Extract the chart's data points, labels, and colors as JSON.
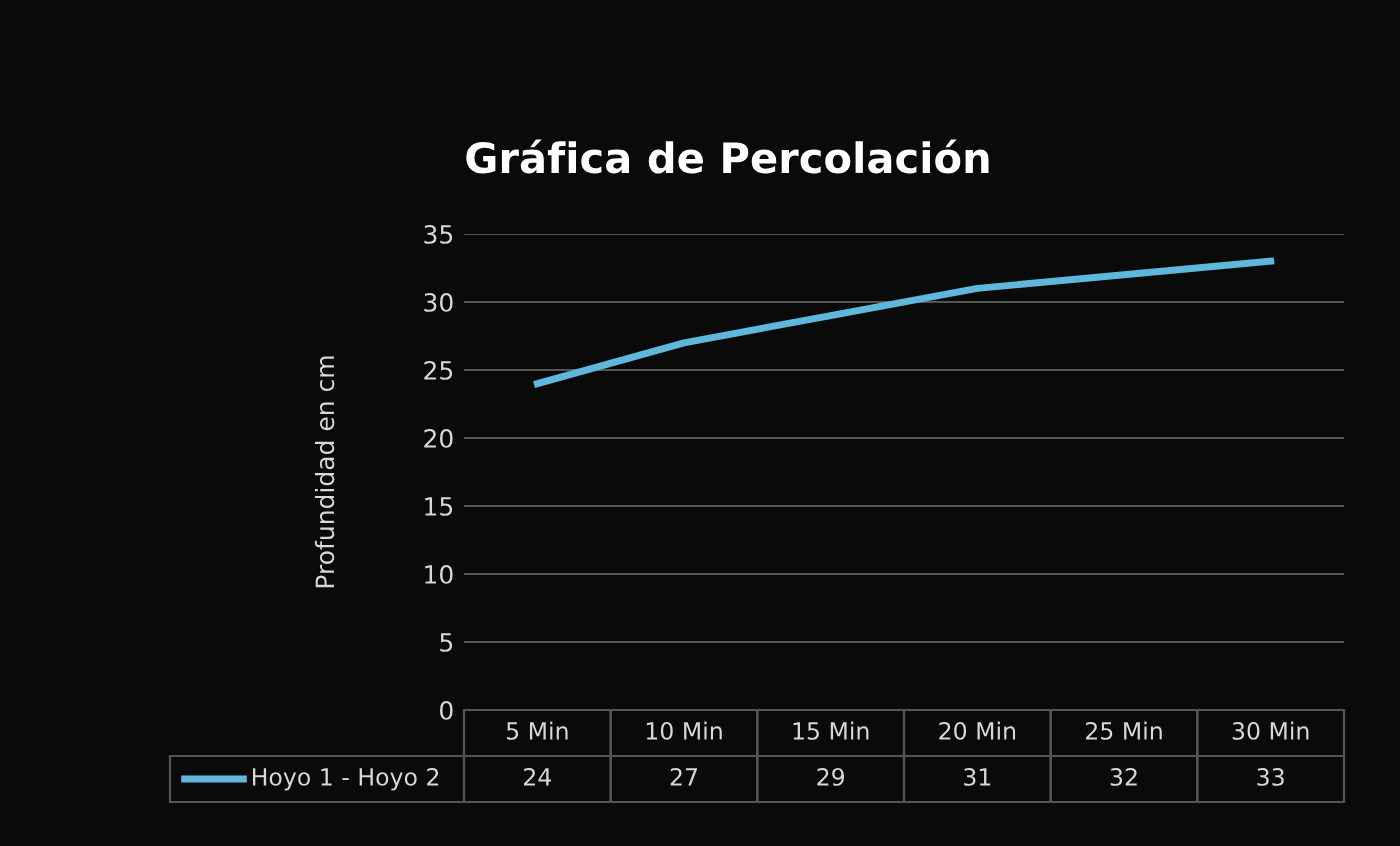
{
  "chart_data": {
    "type": "line",
    "title": "Gráfica de Percolación",
    "ylabel": "Profundidad en cm",
    "categories": [
      "5 Min",
      "10 Min",
      "15 Min",
      "20 Min",
      "25 Min",
      "30 Min"
    ],
    "series": [
      {
        "name": "Hoyo 1 - Hoyo 2",
        "color": "#5fb8dc",
        "values": [
          24,
          27,
          29,
          31,
          32,
          33
        ]
      }
    ],
    "ylim": [
      0,
      35
    ],
    "yticks": [
      0,
      5,
      10,
      15,
      20,
      25,
      30,
      35
    ],
    "grid": "y",
    "legend": "bottom",
    "data_labels": true,
    "marker": "none",
    "line_style": "solid"
  }
}
